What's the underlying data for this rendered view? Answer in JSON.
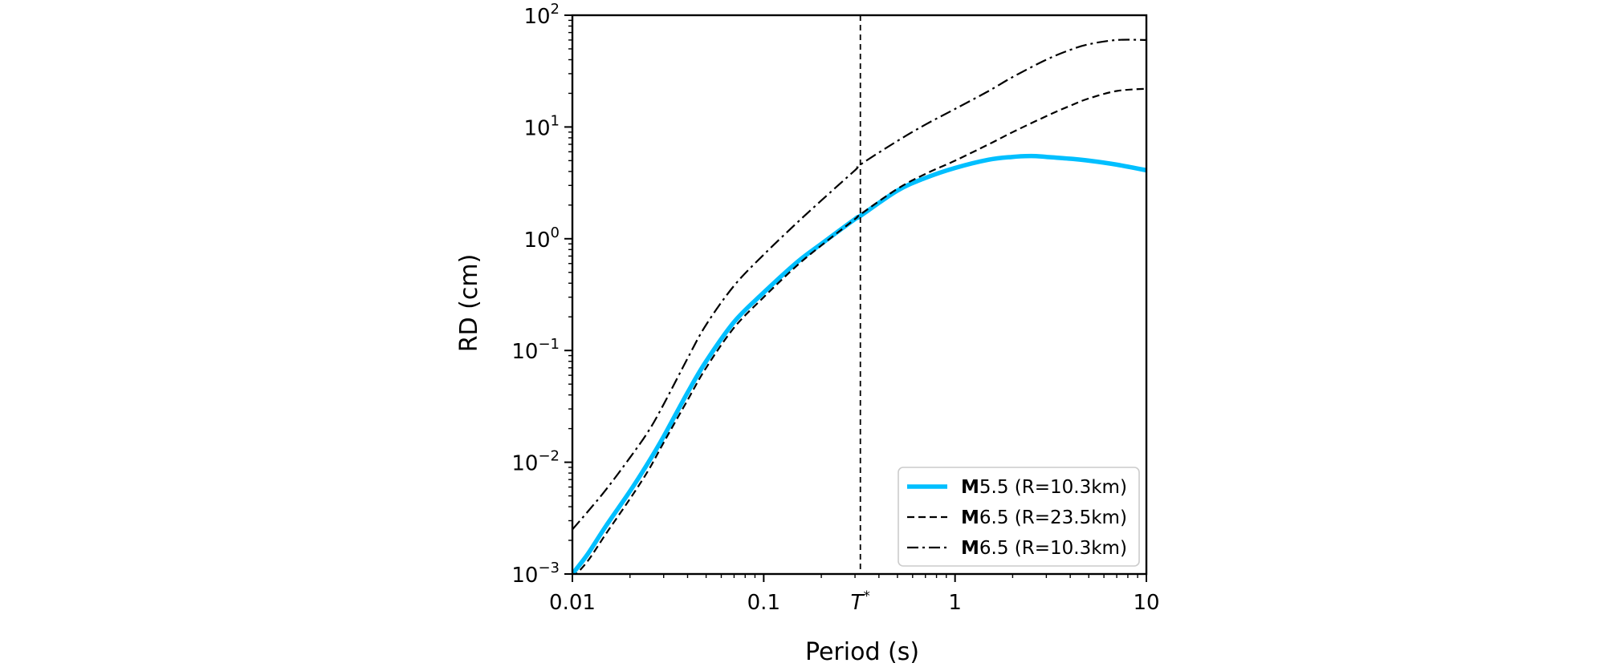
{
  "chart_data": {
    "type": "line",
    "xlabel": "Period (s)",
    "ylabel": "RD (cm)",
    "xscale": "log",
    "yscale": "log",
    "xlim": [
      0.01,
      10
    ],
    "ylim": [
      0.001,
      100
    ],
    "grid": false,
    "legend_position": "lower-right",
    "x_ticks": [
      {
        "value": 0.01,
        "label": "0.01"
      },
      {
        "value": 0.1,
        "label": "0.1"
      },
      {
        "value": 0.32,
        "label": "T",
        "sup": "*",
        "italic": true
      },
      {
        "value": 1,
        "label": "1"
      },
      {
        "value": 10,
        "label": "10"
      }
    ],
    "y_ticks": [
      {
        "value": 0.001,
        "base": "10",
        "exp": "−3"
      },
      {
        "value": 0.01,
        "base": "10",
        "exp": "−2"
      },
      {
        "value": 0.1,
        "base": "10",
        "exp": "−1"
      },
      {
        "value": 1,
        "base": "10",
        "exp": "0"
      },
      {
        "value": 10,
        "base": "10",
        "exp": "1"
      },
      {
        "value": 100,
        "base": "10",
        "exp": "2"
      }
    ],
    "vline": {
      "x": 0.32,
      "style": "dashed",
      "color": "#000000"
    },
    "series": [
      {
        "legend_bold": "M",
        "legend_rest": "5.5 (R=10.3km)",
        "color": "#00bfff",
        "dash": "solid",
        "width": "thick",
        "x": [
          0.01,
          0.012,
          0.015,
          0.02,
          0.025,
          0.03,
          0.04,
          0.05,
          0.07,
          0.1,
          0.15,
          0.2,
          0.3,
          0.32,
          0.5,
          0.7,
          1,
          1.5,
          2,
          2.5,
          3,
          4,
          5,
          7,
          10
        ],
        "y": [
          0.001,
          0.0015,
          0.0027,
          0.0055,
          0.01,
          0.017,
          0.042,
          0.08,
          0.18,
          0.33,
          0.62,
          0.9,
          1.5,
          1.6,
          2.7,
          3.5,
          4.3,
          5.1,
          5.4,
          5.5,
          5.4,
          5.2,
          5.0,
          4.6,
          4.1
        ]
      },
      {
        "legend_bold": "M",
        "legend_rest": "6.5 (R=23.5km)",
        "color": "#000000",
        "dash": "dashed",
        "width": "thin",
        "x": [
          0.01,
          0.012,
          0.015,
          0.02,
          0.025,
          0.03,
          0.04,
          0.05,
          0.07,
          0.1,
          0.15,
          0.2,
          0.3,
          0.32,
          0.5,
          0.7,
          1,
          1.5,
          2,
          3,
          4,
          5,
          7,
          10
        ],
        "y": [
          0.00092,
          0.0013,
          0.0023,
          0.0047,
          0.0085,
          0.015,
          0.036,
          0.07,
          0.16,
          0.3,
          0.58,
          0.87,
          1.5,
          1.65,
          2.8,
          3.8,
          5.0,
          7.0,
          9.0,
          12.5,
          15.5,
          18,
          21,
          22
        ]
      },
      {
        "legend_bold": "M",
        "legend_rest": "6.5 (R=10.3km)",
        "color": "#000000",
        "dash": "dashdot",
        "width": "thin",
        "x": [
          0.01,
          0.012,
          0.015,
          0.02,
          0.025,
          0.03,
          0.04,
          0.05,
          0.07,
          0.1,
          0.15,
          0.2,
          0.3,
          0.32,
          0.5,
          0.7,
          1,
          1.5,
          2,
          3,
          4,
          5,
          7,
          10
        ],
        "y": [
          0.0025,
          0.0036,
          0.0057,
          0.011,
          0.019,
          0.033,
          0.085,
          0.17,
          0.38,
          0.72,
          1.4,
          2.2,
          4.1,
          4.6,
          7.5,
          10.5,
          14.5,
          21,
          28,
          40,
          49,
          55,
          60,
          60
        ]
      }
    ]
  }
}
